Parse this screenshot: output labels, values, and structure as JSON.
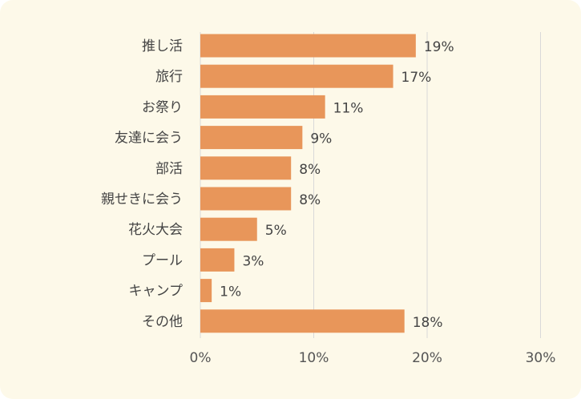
{
  "chart_data": {
    "type": "bar",
    "orientation": "horizontal",
    "categories": [
      "推し活",
      "旅行",
      "お祭り",
      "友達に会う",
      "部活",
      "親せきに会う",
      "花火大会",
      "プール",
      "キャンプ",
      "その他"
    ],
    "values": [
      19,
      17,
      11,
      9,
      8,
      8,
      5,
      3,
      1,
      18
    ],
    "value_labels": [
      "19%",
      "17%",
      "11%",
      "9%",
      "8%",
      "8%",
      "5%",
      "3%",
      "1%",
      "18%"
    ],
    "xlim": [
      0,
      30
    ],
    "xticks": [
      0,
      10,
      20,
      30
    ],
    "xtick_labels": [
      "0%",
      "10%",
      "20%",
      "30%"
    ],
    "grid": "vertical",
    "bar_color": "#e8965a",
    "grid_color": "#d9d9d9",
    "background": "#fdf9e9"
  }
}
